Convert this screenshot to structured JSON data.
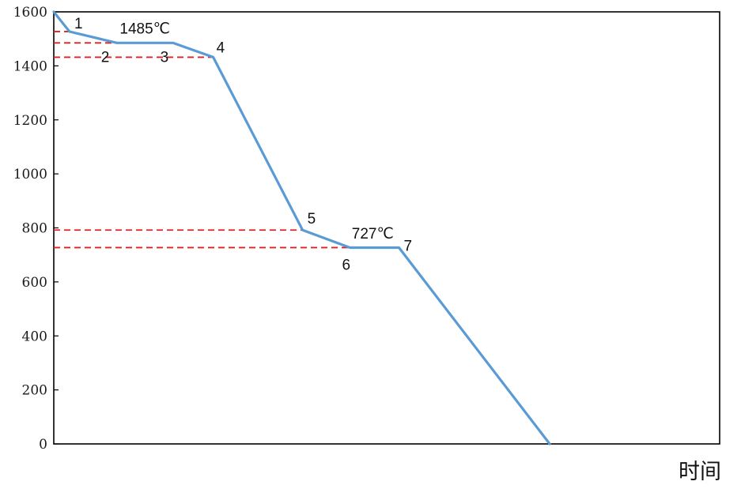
{
  "chart_data": {
    "type": "line",
    "title": "",
    "xlabel": "时间",
    "ylabel": "",
    "ylim": [
      0,
      1600
    ],
    "yticks": [
      0,
      200,
      400,
      600,
      800,
      1000,
      1200,
      1400,
      1600
    ],
    "grid": false,
    "legend": "none",
    "series": [
      {
        "color": "#5b9bd5",
        "x": [
          0,
          0.9,
          3.6,
          6.8,
          9.1,
          14.2,
          16.9,
          19.7,
          28.3
        ],
        "y": [
          1600,
          1527,
          1485,
          1485,
          1432,
          792,
          727,
          727,
          0
        ]
      }
    ],
    "points": [
      {
        "label": "1",
        "x": 0.9,
        "y": 1527
      },
      {
        "label": "2",
        "x": 3.6,
        "y": 1485
      },
      {
        "label": "3",
        "x": 6.8,
        "y": 1485
      },
      {
        "label": "4",
        "x": 9.1,
        "y": 1432
      },
      {
        "label": "5",
        "x": 14.2,
        "y": 792
      },
      {
        "label": "6",
        "x": 16.9,
        "y": 727
      },
      {
        "label": "7",
        "x": 19.7,
        "y": 727
      }
    ],
    "reference_lines": [
      {
        "y": 1527,
        "x_end": 0.9
      },
      {
        "y": 1485,
        "x_end": 3.6
      },
      {
        "y": 1432,
        "x_end": 9.1
      },
      {
        "y": 792,
        "x_end": 14.2
      },
      {
        "y": 727,
        "x_end": 16.9
      }
    ],
    "annotations": [
      {
        "text": "1485℃",
        "x": 5.2,
        "y": 1520
      },
      {
        "text": "727℃",
        "x": 18.2,
        "y": 760
      }
    ],
    "xlim": [
      0,
      38
    ],
    "colors": {
      "line": "#5b9bd5",
      "reference": "#e02020",
      "axes": "#000000"
    }
  }
}
